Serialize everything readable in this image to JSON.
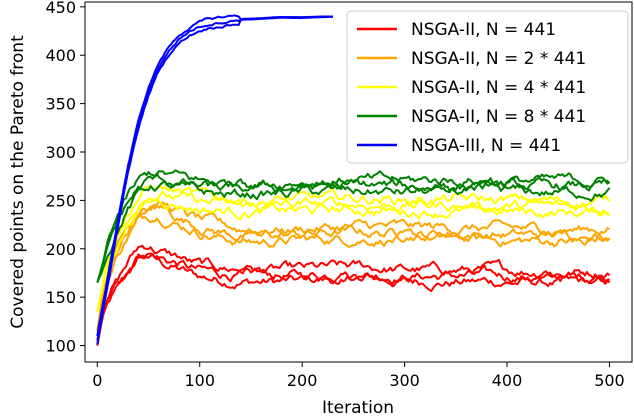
{
  "chart_data": {
    "type": "line",
    "xlabel": "Iteration",
    "ylabel": "Covered points on the Pareto front",
    "xlim": [
      -12,
      522
    ],
    "ylim": [
      83,
      455
    ],
    "xticks": [
      0,
      100,
      200,
      300,
      400,
      500
    ],
    "yticks": [
      100,
      150,
      200,
      250,
      300,
      350,
      400,
      450
    ],
    "grid": false,
    "legend_position": "top-right",
    "runs_per_series": 3,
    "series": [
      {
        "name": "NSGA-II, N = 441",
        "color": "#ff0000",
        "x": [
          0,
          5,
          10,
          15,
          20,
          30,
          40,
          50,
          60,
          70,
          80,
          90,
          100,
          120,
          140,
          160,
          180,
          200,
          230,
          260,
          300,
          340,
          380,
          420,
          460,
          500
        ],
        "values": [
          100,
          130,
          145,
          155,
          162,
          180,
          195,
          198,
          192,
          188,
          185,
          180,
          177,
          174,
          173,
          172,
          172,
          172,
          174,
          175,
          172,
          172,
          172,
          171,
          170,
          171
        ]
      },
      {
        "name": "NSGA-II, N = 2 * 441",
        "color": "#ffa500",
        "x": [
          0,
          5,
          10,
          15,
          20,
          30,
          40,
          50,
          60,
          70,
          80,
          90,
          100,
          120,
          140,
          160,
          180,
          200,
          230,
          260,
          300,
          340,
          380,
          420,
          460,
          500
        ],
        "values": [
          115,
          150,
          170,
          185,
          200,
          220,
          235,
          240,
          242,
          238,
          232,
          228,
          224,
          218,
          214,
          213,
          214,
          215,
          216,
          217,
          216,
          216,
          215,
          214,
          214,
          215
        ]
      },
      {
        "name": "NSGA-II, N = 4 * 441",
        "color": "#ffff00",
        "x": [
          0,
          5,
          10,
          15,
          20,
          30,
          40,
          50,
          60,
          70,
          80,
          90,
          100,
          120,
          140,
          160,
          180,
          200,
          230,
          260,
          300,
          340,
          380,
          420,
          460,
          500
        ],
        "values": [
          135,
          160,
          185,
          200,
          212,
          232,
          248,
          256,
          258,
          255,
          252,
          250,
          248,
          246,
          245,
          244,
          245,
          245,
          246,
          246,
          245,
          245,
          244,
          244,
          243,
          244
        ]
      },
      {
        "name": "NSGA-II, N = 8 * 441",
        "color": "#008000",
        "x": [
          0,
          5,
          10,
          15,
          20,
          30,
          40,
          50,
          60,
          70,
          80,
          90,
          100,
          120,
          140,
          160,
          180,
          200,
          230,
          260,
          300,
          340,
          380,
          420,
          460,
          500
        ],
        "values": [
          165,
          180,
          200,
          215,
          228,
          248,
          262,
          270,
          272,
          270,
          268,
          266,
          264,
          262,
          262,
          263,
          263,
          264,
          265,
          265,
          264,
          265,
          265,
          264,
          264,
          265
        ]
      },
      {
        "name": "NSGA-III, N = 441",
        "color": "#0000ff",
        "x": [
          0,
          5,
          10,
          15,
          20,
          25,
          30,
          35,
          40,
          45,
          50,
          55,
          60,
          70,
          80,
          90,
          100,
          110,
          120,
          140,
          160,
          180,
          200,
          230
        ],
        "values": [
          105,
          135,
          165,
          195,
          225,
          255,
          282,
          305,
          327,
          346,
          362,
          376,
          388,
          405,
          417,
          425,
          430,
          433,
          435,
          437,
          438,
          439,
          439,
          440
        ]
      }
    ]
  }
}
